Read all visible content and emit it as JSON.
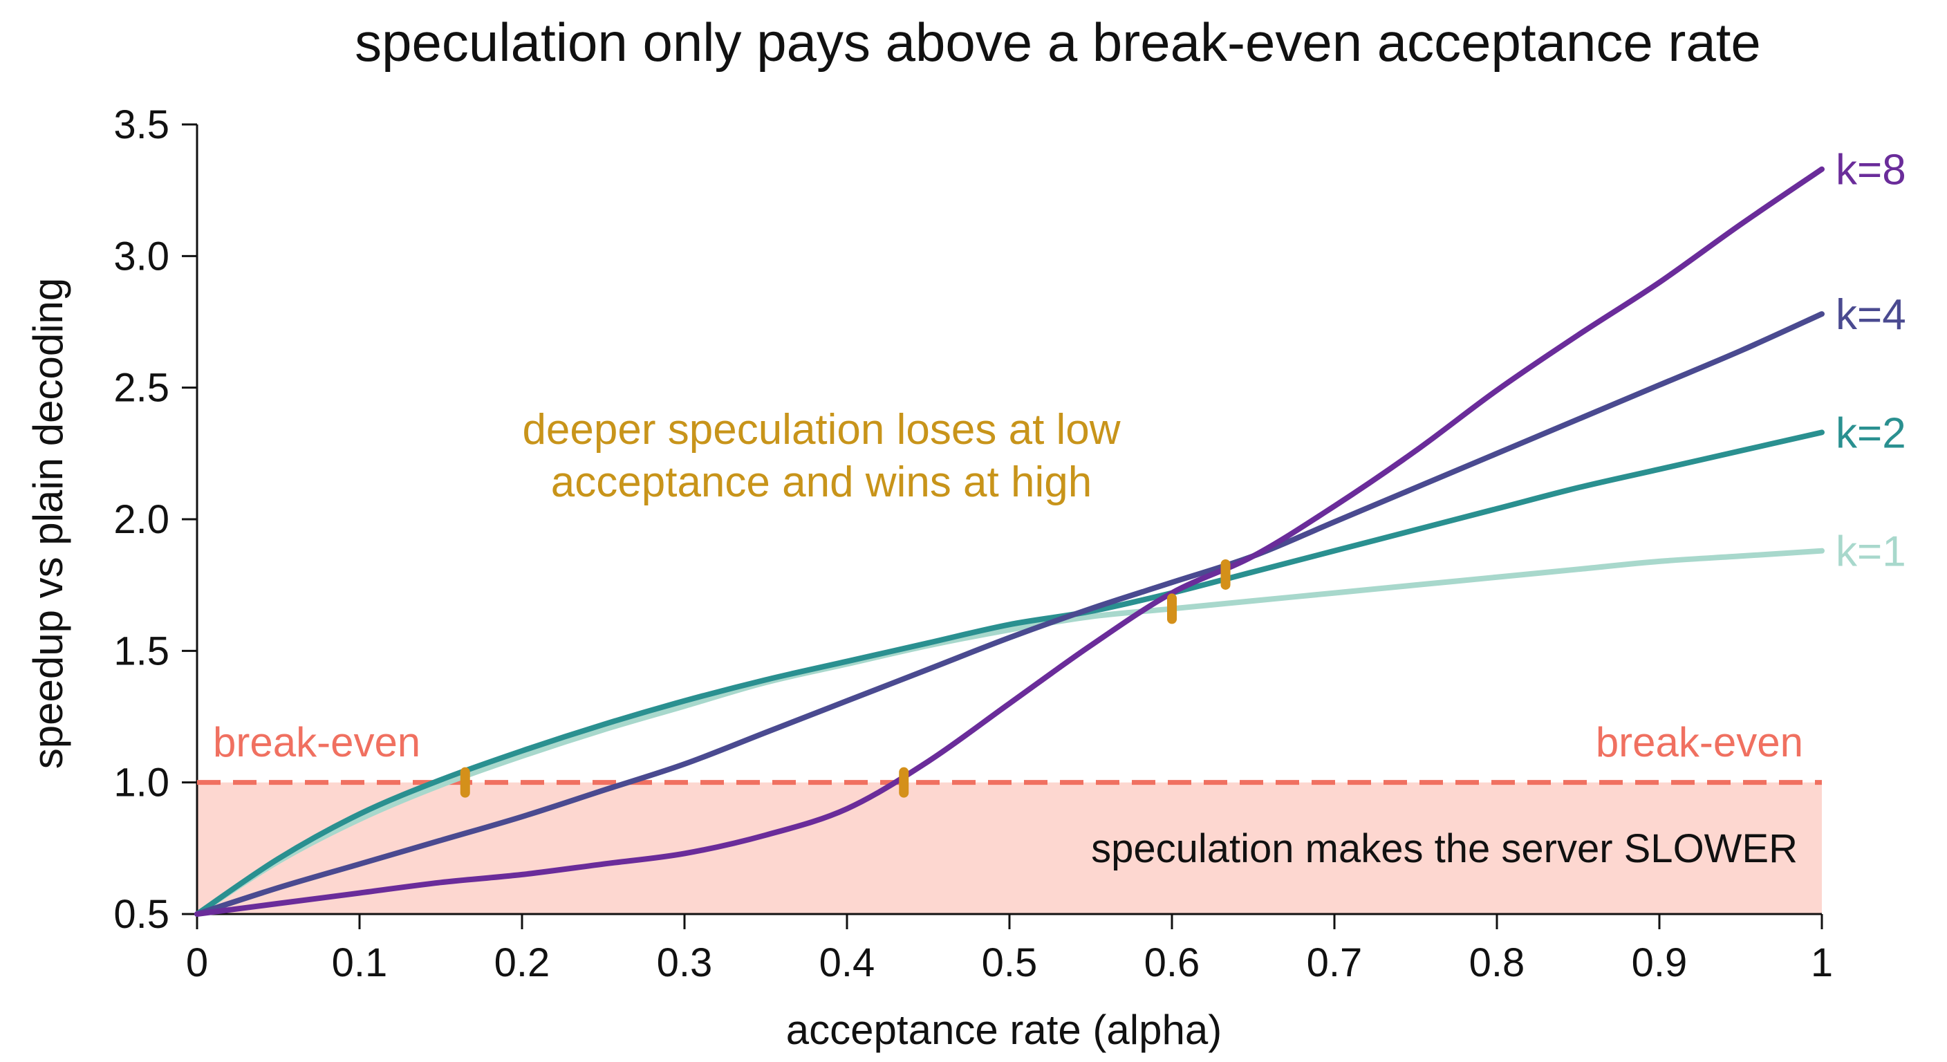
{
  "chart_data": {
    "type": "line",
    "title": "speculation only pays above a break-even acceptance rate",
    "xlabel": "acceptance rate (alpha)",
    "ylabel": "speedup vs plain decoding",
    "xlim": [
      0,
      1
    ],
    "ylim": [
      0.5,
      3.5
    ],
    "x_ticks": [
      0,
      0.1,
      0.2,
      0.3,
      0.4,
      0.5,
      0.6,
      0.7,
      0.8,
      0.9,
      1
    ],
    "x_tick_labels": [
      "0",
      "0.1",
      "0.2",
      "0.3",
      "0.4",
      "0.5",
      "0.6",
      "0.7",
      "0.8",
      "0.9",
      "1"
    ],
    "y_ticks": [
      0.5,
      1.0,
      1.5,
      2.0,
      2.5,
      3.0,
      3.5
    ],
    "y_tick_labels": [
      "0.5",
      "1.0",
      "1.5",
      "2.0",
      "2.5",
      "3.0",
      "3.5"
    ],
    "grid": false,
    "x": [
      0,
      0.05,
      0.1,
      0.15,
      0.2,
      0.25,
      0.3,
      0.35,
      0.4,
      0.45,
      0.5,
      0.55,
      0.6,
      0.65,
      0.7,
      0.75,
      0.8,
      0.85,
      0.9,
      0.95,
      1.0
    ],
    "series": [
      {
        "name": "k=1",
        "color": "#a8d8cc",
        "values": [
          0.5,
          0.7,
          0.86,
          0.99,
          1.1,
          1.2,
          1.29,
          1.38,
          1.45,
          1.52,
          1.58,
          1.63,
          1.66,
          1.69,
          1.72,
          1.75,
          1.78,
          1.81,
          1.84,
          1.86,
          1.88
        ]
      },
      {
        "name": "k=2",
        "color": "#2a9090",
        "values": [
          0.5,
          0.71,
          0.88,
          1.01,
          1.12,
          1.22,
          1.31,
          1.39,
          1.46,
          1.53,
          1.6,
          1.65,
          1.72,
          1.8,
          1.88,
          1.96,
          2.04,
          2.12,
          2.19,
          2.26,
          2.33
        ]
      },
      {
        "name": "k=4",
        "color": "#4a4a90",
        "values": [
          0.5,
          0.6,
          0.69,
          0.78,
          0.87,
          0.97,
          1.07,
          1.19,
          1.31,
          1.43,
          1.55,
          1.66,
          1.76,
          1.86,
          1.99,
          2.12,
          2.25,
          2.38,
          2.51,
          2.64,
          2.78
        ]
      },
      {
        "name": "k=8",
        "color": "#6a2c9a",
        "values": [
          0.5,
          0.54,
          0.58,
          0.62,
          0.65,
          0.69,
          0.73,
          0.8,
          0.9,
          1.08,
          1.3,
          1.52,
          1.72,
          1.86,
          2.05,
          2.26,
          2.49,
          2.7,
          2.9,
          3.12,
          3.33
        ]
      }
    ],
    "break_even": {
      "y": 1.0,
      "label_left": "break-even",
      "label_right": "break-even",
      "line_color": "#f07060",
      "fill_color": "#fdd0c8"
    },
    "slower_region_label": "speculation makes the server SLOWER",
    "annotation": {
      "lines": [
        "deeper speculation loses at low",
        "acceptance and wins at high"
      ],
      "color": "#c8941a"
    },
    "markers": {
      "color": "#d4901a",
      "points": [
        {
          "x": 0.165,
          "y": 1.0
        },
        {
          "x": 0.435,
          "y": 1.0
        },
        {
          "x": 0.6,
          "y": 1.66
        },
        {
          "x": 0.633,
          "y": 1.79
        }
      ]
    }
  }
}
